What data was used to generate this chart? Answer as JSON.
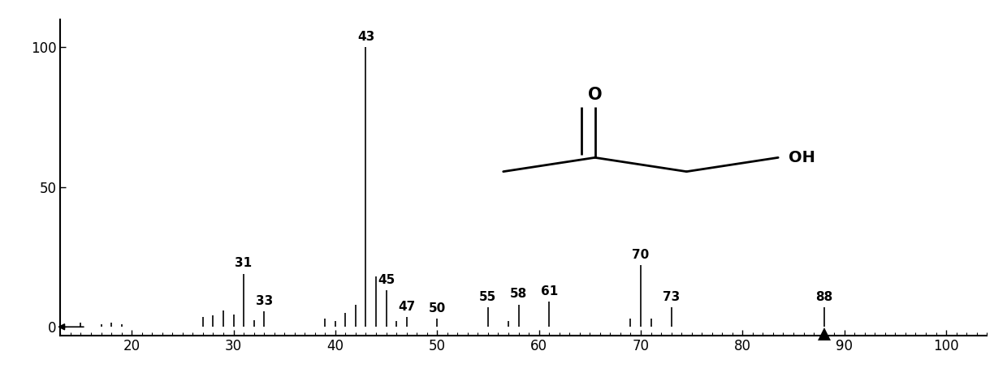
{
  "peaks": [
    {
      "mz": 15,
      "intensity": 1.5
    },
    {
      "mz": 17,
      "intensity": 1.0
    },
    {
      "mz": 18,
      "intensity": 1.5
    },
    {
      "mz": 19,
      "intensity": 1.0
    },
    {
      "mz": 27,
      "intensity": 3.5
    },
    {
      "mz": 28,
      "intensity": 4.0
    },
    {
      "mz": 29,
      "intensity": 6.0
    },
    {
      "mz": 30,
      "intensity": 4.5
    },
    {
      "mz": 31,
      "intensity": 19.0
    },
    {
      "mz": 32,
      "intensity": 2.5
    },
    {
      "mz": 33,
      "intensity": 5.5
    },
    {
      "mz": 39,
      "intensity": 3.0
    },
    {
      "mz": 40,
      "intensity": 2.0
    },
    {
      "mz": 41,
      "intensity": 5.0
    },
    {
      "mz": 42,
      "intensity": 8.0
    },
    {
      "mz": 43,
      "intensity": 100.0
    },
    {
      "mz": 44,
      "intensity": 18.0
    },
    {
      "mz": 45,
      "intensity": 13.0
    },
    {
      "mz": 46,
      "intensity": 2.0
    },
    {
      "mz": 47,
      "intensity": 3.5
    },
    {
      "mz": 50,
      "intensity": 3.0
    },
    {
      "mz": 55,
      "intensity": 7.0
    },
    {
      "mz": 57,
      "intensity": 2.0
    },
    {
      "mz": 58,
      "intensity": 8.0
    },
    {
      "mz": 61,
      "intensity": 9.0
    },
    {
      "mz": 69,
      "intensity": 3.0
    },
    {
      "mz": 70,
      "intensity": 22.0
    },
    {
      "mz": 71,
      "intensity": 3.0
    },
    {
      "mz": 73,
      "intensity": 7.0
    },
    {
      "mz": 88,
      "intensity": 7.0
    }
  ],
  "labeled_peaks": [
    31,
    33,
    43,
    45,
    47,
    50,
    55,
    58,
    61,
    70,
    73,
    88
  ],
  "molecular_ion": 88,
  "xmin": 13,
  "xmax": 104,
  "ymin": -3,
  "ymax": 110,
  "xticks": [
    20,
    30,
    40,
    50,
    60,
    70,
    80,
    90,
    100
  ],
  "yticks": [
    0,
    50,
    100
  ],
  "bar_color": "#000000",
  "background_color": "#ffffff"
}
